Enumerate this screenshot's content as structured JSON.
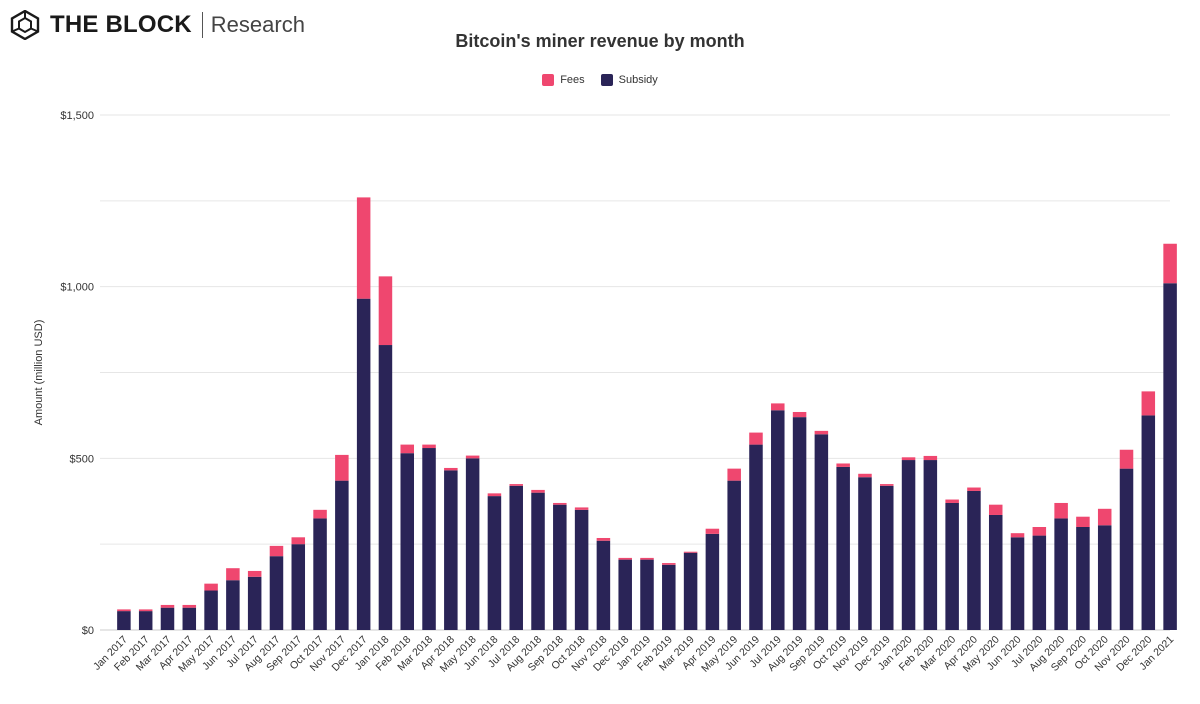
{
  "brand": {
    "name": "THE BLOCK",
    "sub": "Research"
  },
  "colors": {
    "fees": "#ef476f",
    "subsidy": "#2a2457",
    "grid": "#e6e6e6"
  },
  "chart_data": {
    "type": "bar",
    "stacked": true,
    "title": "Bitcoin's miner revenue by month",
    "xlabel": "",
    "ylabel": "Amount (million USD)",
    "ylim": [
      0,
      1500
    ],
    "yticks": [
      0,
      500,
      1000,
      1500
    ],
    "ytick_labels": [
      "$0",
      "$500",
      "$1,000",
      "$1,500"
    ],
    "grid": true,
    "legend_position": "top-center",
    "categories": [
      "Jan 2017",
      "Feb 2017",
      "Mar 2017",
      "Apr 2017",
      "May 2017",
      "Jun 2017",
      "Jul 2017",
      "Aug 2017",
      "Sep 2017",
      "Oct 2017",
      "Nov 2017",
      "Dec 2017",
      "Jan 2018",
      "Feb 2018",
      "Mar 2018",
      "Apr 2018",
      "May 2018",
      "Jun 2018",
      "Jul 2018",
      "Aug 2018",
      "Sep 2018",
      "Oct 2018",
      "Nov 2018",
      "Dec 2018",
      "Jan 2019",
      "Feb 2019",
      "Mar 2019",
      "Apr 2019",
      "May 2019",
      "Jun 2019",
      "Jul 2019",
      "Aug 2019",
      "Sep 2019",
      "Oct 2019",
      "Nov 2019",
      "Dec 2019",
      "Jan 2020",
      "Feb 2020",
      "Mar 2020",
      "Apr 2020",
      "May 2020",
      "Jun 2020",
      "Jul 2020",
      "Aug 2020",
      "Sep 2020",
      "Oct 2020",
      "Nov 2020",
      "Dec 2020",
      "Jan 2021"
    ],
    "series": [
      {
        "name": "Subsidy",
        "color": "#2a2457",
        "values": [
          55,
          55,
          65,
          65,
          115,
          145,
          155,
          215,
          250,
          325,
          435,
          965,
          830,
          515,
          530,
          465,
          500,
          390,
          420,
          400,
          365,
          350,
          260,
          205,
          205,
          190,
          225,
          280,
          435,
          540,
          640,
          620,
          570,
          475,
          445,
          420,
          495,
          495,
          370,
          405,
          335,
          270,
          275,
          325,
          300,
          305,
          470,
          625,
          1010
        ]
      },
      {
        "name": "Fees",
        "color": "#ef476f",
        "values": [
          5,
          5,
          8,
          8,
          20,
          35,
          17,
          30,
          20,
          25,
          75,
          295,
          200,
          25,
          10,
          7,
          8,
          8,
          5,
          8,
          5,
          7,
          8,
          5,
          5,
          5,
          3,
          15,
          35,
          35,
          20,
          15,
          10,
          10,
          10,
          5,
          8,
          12,
          10,
          10,
          30,
          12,
          25,
          45,
          30,
          48,
          55,
          70,
          115
        ]
      }
    ]
  }
}
